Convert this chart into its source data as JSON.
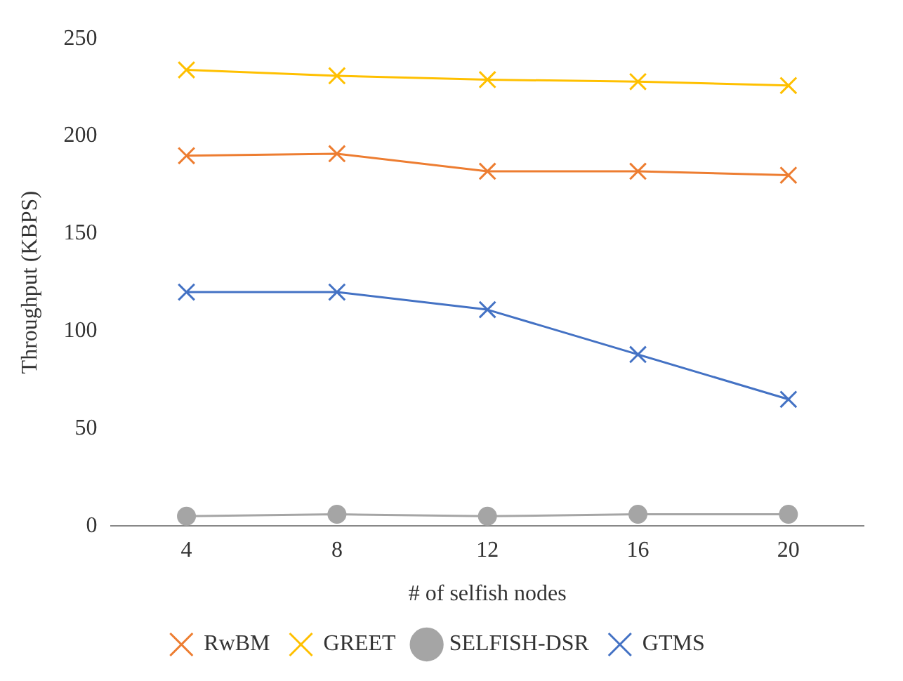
{
  "chart_data": {
    "type": "line",
    "xlabel": "# of selfish nodes",
    "ylabel": "Throughput (KBPS)",
    "categories": [
      "4",
      "8",
      "12",
      "16",
      "20"
    ],
    "series": [
      {
        "name": "RwBM",
        "color": "#ed7d31",
        "marker": "cross",
        "values": [
          190,
          191,
          182,
          182,
          180
        ]
      },
      {
        "name": "GREET",
        "color": "#ffc000",
        "marker": "cross",
        "values": [
          234,
          231,
          229,
          228,
          226
        ]
      },
      {
        "name": "SELFISH-DSR",
        "color": "#a5a5a5",
        "marker": "circle",
        "values": [
          5,
          6,
          5,
          6,
          6
        ]
      },
      {
        "name": "GTMS",
        "color": "#4472c4",
        "marker": "cross",
        "values": [
          120,
          120,
          111,
          88,
          65
        ]
      }
    ],
    "ylim": [
      0,
      250
    ],
    "yticks": [
      0,
      50,
      100,
      150,
      200,
      250
    ],
    "grid": false,
    "legend": "bottom"
  }
}
